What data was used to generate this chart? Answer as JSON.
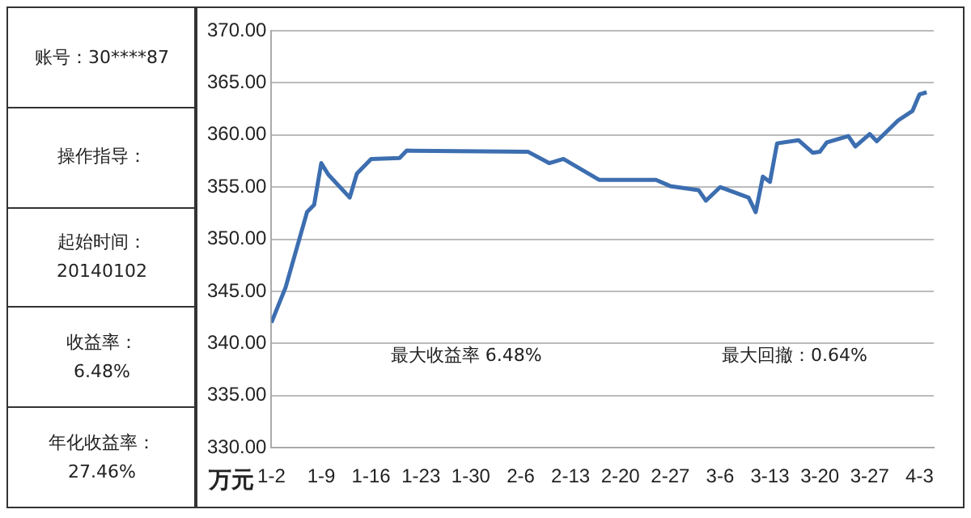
{
  "chart_data": [
    {
      "type": "other",
      "annotations": [
        "账号：30****87",
        "操作指导：",
        "起始时间：\n20140102",
        "收益率：\n6.48%",
        "年化收益率：\n27.46%"
      ]
    },
    {
      "type": "line",
      "ylabel": "万元",
      "color": "#3c6eb0",
      "marker": "none",
      "line_style": "solid",
      "grid": "y",
      "legend": false,
      "x": [
        "--01-02",
        "--01-04",
        "--01-07",
        "--01-08",
        "--01-09",
        "--01-10",
        "--01-13",
        "--01-14",
        "--01-16",
        "--01-20",
        "--01-21",
        "--02-07",
        "--02-10",
        "--02-12",
        "--02-17",
        "--02-25",
        "--02-27",
        "--03-03",
        "--03-04",
        "--03-06",
        "--03-10",
        "--03-11",
        "--03-12",
        "--03-13",
        "--03-14",
        "--03-17",
        "--03-19",
        "--03-20",
        "--03-21",
        "--03-24",
        "--03-25",
        "--03-27",
        "--03-28",
        "--03-31",
        "--04-02",
        "--04-03",
        "--04-04"
      ],
      "values": [
        342.0,
        345.4,
        352.6,
        353.3,
        357.3,
        356.2,
        354.0,
        356.3,
        357.7,
        357.8,
        358.5,
        358.4,
        357.3,
        357.7,
        355.7,
        355.7,
        355.1,
        354.7,
        353.7,
        355.0,
        354.0,
        352.6,
        356.0,
        355.5,
        359.2,
        359.5,
        358.3,
        358.4,
        359.3,
        359.9,
        358.9,
        360.1,
        359.4,
        361.4,
        362.3,
        363.9,
        364.1
      ],
      "xlim": [
        "--01-02",
        "--04-05"
      ],
      "xticks": [
        {
          "value": "--01-02",
          "label": "1-2"
        },
        {
          "value": "--01-09",
          "label": "1-9"
        },
        {
          "value": "--01-16",
          "label": "1-16"
        },
        {
          "value": "--01-23",
          "label": "1-23"
        },
        {
          "value": "--01-30",
          "label": "1-30"
        },
        {
          "value": "--02-06",
          "label": "2-6"
        },
        {
          "value": "--02-13",
          "label": "2-13"
        },
        {
          "value": "--02-20",
          "label": "2-20"
        },
        {
          "value": "--02-27",
          "label": "2-27"
        },
        {
          "value": "--03-06",
          "label": "3-6"
        },
        {
          "value": "--03-13",
          "label": "3-13"
        },
        {
          "value": "--03-20",
          "label": "3-20"
        },
        {
          "value": "--03-27",
          "label": "3-27"
        },
        {
          "value": "--04-03",
          "label": "4-3"
        }
      ],
      "ylim": [
        330,
        370
      ],
      "yticks": [
        {
          "value": 330,
          "label": "330.00"
        },
        {
          "value": 335,
          "label": "335.00"
        },
        {
          "value": 340,
          "label": "340.00"
        },
        {
          "value": 345,
          "label": "345.00"
        },
        {
          "value": 350,
          "label": "350.00"
        },
        {
          "value": 355,
          "label": "355.00"
        },
        {
          "value": 360,
          "label": "360.00"
        },
        {
          "value": 365,
          "label": "365.00"
        },
        {
          "value": 370,
          "label": "370.00"
        }
      ],
      "annotations": [
        "最大收益率 6.48%",
        "最大回撤：0.64%"
      ]
    }
  ]
}
